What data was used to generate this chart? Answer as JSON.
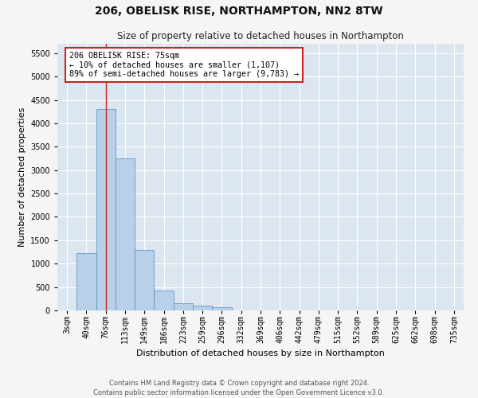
{
  "title": "206, OBELISK RISE, NORTHAMPTON, NN2 8TW",
  "subtitle": "Size of property relative to detached houses in Northampton",
  "xlabel": "Distribution of detached houses by size in Northampton",
  "ylabel": "Number of detached properties",
  "footer_line1": "Contains HM Land Registry data © Crown copyright and database right 2024.",
  "footer_line2": "Contains public sector information licensed under the Open Government Licence v3.0.",
  "categories": [
    "3sqm",
    "40sqm",
    "76sqm",
    "113sqm",
    "149sqm",
    "186sqm",
    "223sqm",
    "259sqm",
    "296sqm",
    "332sqm",
    "369sqm",
    "406sqm",
    "442sqm",
    "479sqm",
    "515sqm",
    "552sqm",
    "589sqm",
    "625sqm",
    "662sqm",
    "698sqm",
    "735sqm"
  ],
  "values": [
    0,
    1230,
    4300,
    3250,
    1300,
    420,
    160,
    100,
    60,
    0,
    0,
    0,
    0,
    0,
    0,
    0,
    0,
    0,
    0,
    0,
    0
  ],
  "bar_color": "#b8d0e8",
  "bar_edge_color": "#6096c8",
  "highlight_color": "#cc2222",
  "annotation_text": "206 OBELISK RISE: 75sqm\n← 10% of detached houses are smaller (1,107)\n89% of semi-detached houses are larger (9,783) →",
  "annotation_box_color": "#ffffff",
  "annotation_box_edge_color": "#cc2222",
  "vline_x": 2.0,
  "ylim": [
    0,
    5700
  ],
  "yticks": [
    0,
    500,
    1000,
    1500,
    2000,
    2500,
    3000,
    3500,
    4000,
    4500,
    5000,
    5500
  ],
  "bg_color": "#dce6f0",
  "grid_color": "#ffffff",
  "fig_bg_color": "#f5f5f5",
  "title_fontsize": 10,
  "subtitle_fontsize": 8.5,
  "axis_label_fontsize": 8,
  "tick_fontsize": 7,
  "footer_fontsize": 6
}
